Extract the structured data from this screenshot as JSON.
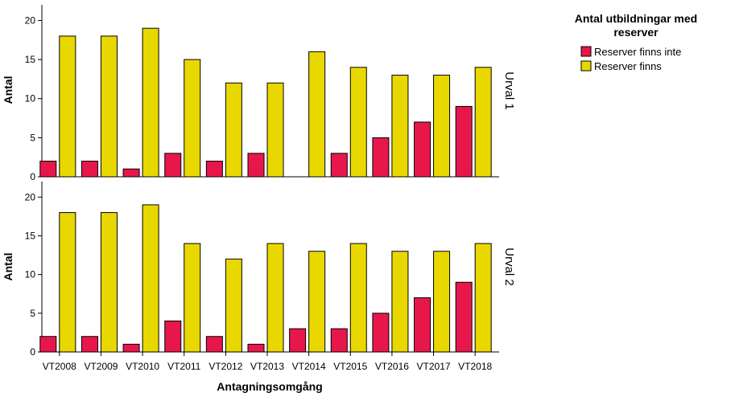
{
  "chart_data": {
    "type": "bar",
    "xlabel": "Antagningsomgång",
    "ylabel": "Antal",
    "ylim": [
      0,
      22
    ],
    "yticks": [
      0,
      5,
      10,
      15,
      20
    ],
    "grid": false,
    "legend": {
      "title": "Antal utbildningar med reserver",
      "placement": "top-right"
    },
    "categories": [
      "VT2008",
      "VT2009",
      "VT2010",
      "VT2011",
      "VT2012",
      "VT2013",
      "VT2014",
      "VT2015",
      "VT2016",
      "VT2017",
      "VT2018"
    ],
    "series_meta": [
      {
        "name": "Reserver finns inte",
        "color": "#e8174b"
      },
      {
        "name": "Reserver finns",
        "color": "#e8d800"
      }
    ],
    "panels": [
      {
        "label": "Urval 1",
        "series": [
          {
            "name": "Reserver finns inte",
            "values": [
              2,
              2,
              1,
              3,
              2,
              3,
              0,
              3,
              5,
              7,
              9
            ]
          },
          {
            "name": "Reserver finns",
            "values": [
              18,
              18,
              19,
              15,
              12,
              12,
              16,
              14,
              13,
              13,
              14
            ]
          }
        ]
      },
      {
        "label": "Urval 2",
        "series": [
          {
            "name": "Reserver finns inte",
            "values": [
              2,
              2,
              1,
              4,
              2,
              1,
              3,
              3,
              5,
              7,
              9
            ]
          },
          {
            "name": "Reserver finns",
            "values": [
              18,
              18,
              19,
              14,
              12,
              14,
              13,
              14,
              13,
              13,
              14
            ]
          }
        ]
      }
    ]
  }
}
